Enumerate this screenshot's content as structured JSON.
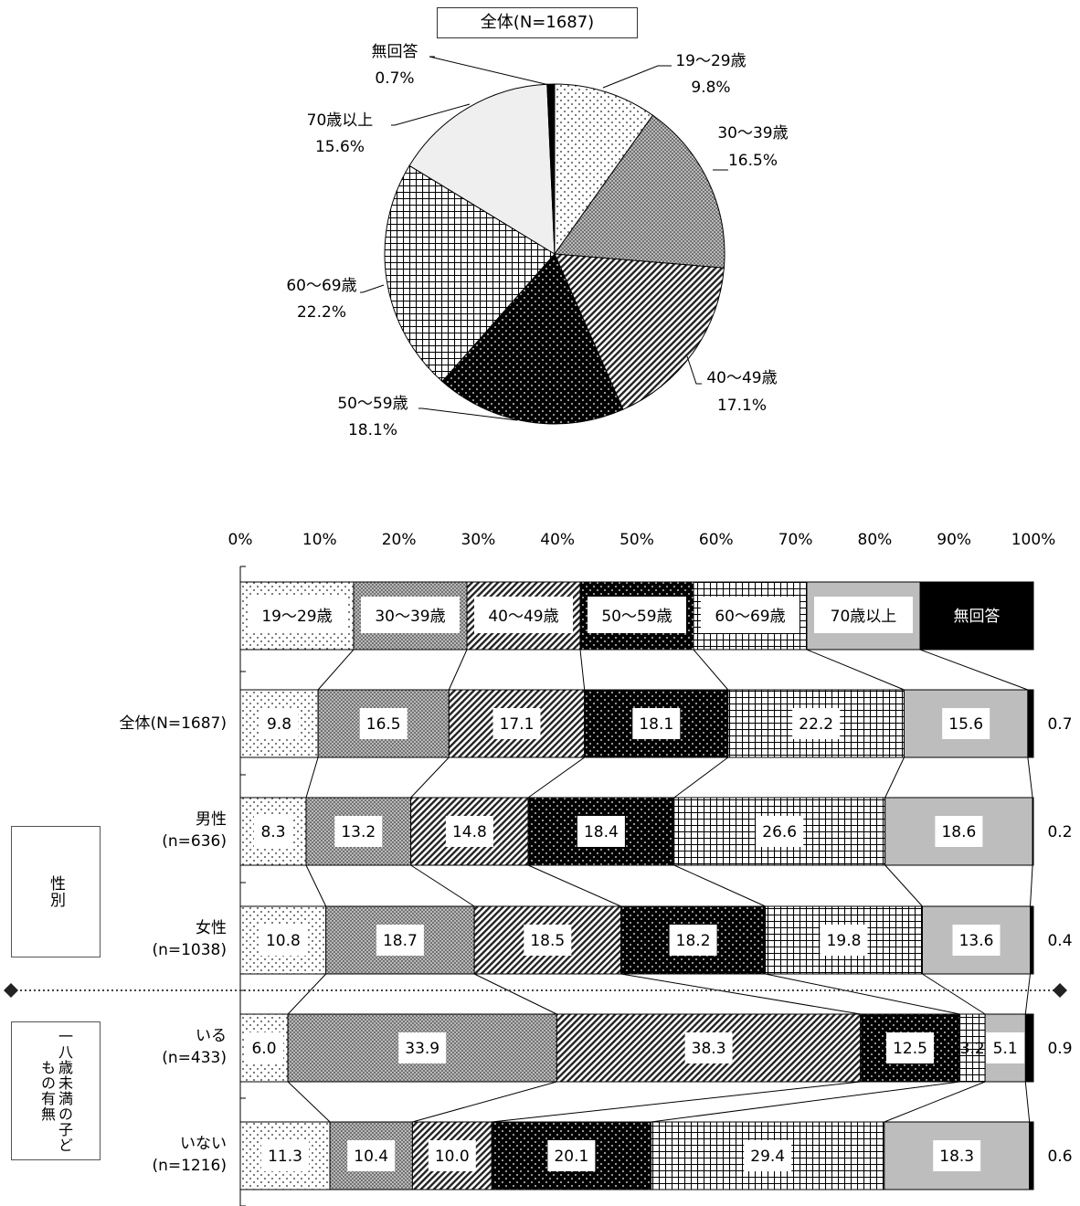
{
  "pie": {
    "title": "全体(N=1687)",
    "labels": [
      {
        "name": "19〜29歳",
        "value": "9.8%"
      },
      {
        "name": "30〜39歳",
        "value": "16.5%"
      },
      {
        "name": "40〜49歳",
        "value": "17.1%"
      },
      {
        "name": "50〜59歳",
        "value": "18.1%"
      },
      {
        "name": "60〜69歳",
        "value": "22.2%"
      },
      {
        "name": "70歳以上",
        "value": "15.6%"
      },
      {
        "name": "無回答",
        "value": "0.7%"
      }
    ]
  },
  "groups": {
    "sex": "性別",
    "children": "一八歳未満の子どもの有無"
  },
  "chart_data": [
    {
      "type": "pie",
      "title": "全体(N=1687)",
      "categories": [
        "19〜29歳",
        "30〜39歳",
        "40〜49歳",
        "50〜59歳",
        "60〜69歳",
        "70歳以上",
        "無回答"
      ],
      "values": [
        9.8,
        16.5,
        17.1,
        18.1,
        22.2,
        15.6,
        0.7
      ],
      "unit": "%"
    },
    {
      "type": "bar",
      "orientation": "horizontal-stacked-100",
      "x_ticks": [
        "0%",
        "10%",
        "20%",
        "30%",
        "40%",
        "50%",
        "60%",
        "70%",
        "80%",
        "90%",
        "100%"
      ],
      "xlim": [
        0,
        100
      ],
      "legend_position": "top",
      "categories_legend": [
        "19〜29歳",
        "30〜39歳",
        "40〜49歳",
        "50〜59歳",
        "60〜69歳",
        "70歳以上",
        "無回答"
      ],
      "rows": [
        {
          "label": "全体(N=1687)",
          "label_line2": "",
          "values": [
            9.8,
            16.5,
            17.1,
            18.1,
            22.2,
            15.6,
            0.7
          ],
          "value_labels": [
            "9.8",
            "16.5",
            "17.1",
            "18.1",
            "22.2",
            "15.6",
            "0.7"
          ]
        },
        {
          "label": "男性",
          "label_line2": "(n=636)",
          "values": [
            8.3,
            13.2,
            14.8,
            18.4,
            26.6,
            18.6,
            0.2
          ],
          "value_labels": [
            "8.3",
            "13.2",
            "14.8",
            "18.4",
            "26.6",
            "18.6",
            "0.2"
          ]
        },
        {
          "label": "女性",
          "label_line2": "(n=1038)",
          "values": [
            10.8,
            18.7,
            18.5,
            18.2,
            19.8,
            13.6,
            0.4
          ],
          "value_labels": [
            "10.8",
            "18.7",
            "18.5",
            "18.2",
            "19.8",
            "13.6",
            "0.4"
          ]
        },
        {
          "label": "いる",
          "label_line2": "(n=433)",
          "values": [
            6.0,
            33.9,
            38.3,
            12.5,
            3.2,
            5.1,
            0.9
          ],
          "value_labels": [
            "6.0",
            "33.9",
            "38.3",
            "12.5",
            "3.2",
            "5.1",
            "0.9"
          ]
        },
        {
          "label": "いない",
          "label_line2": "(n=1216)",
          "values": [
            11.3,
            10.4,
            10.0,
            20.1,
            29.4,
            18.3,
            0.6
          ],
          "value_labels": [
            "11.3",
            "10.4",
            "10.0",
            "20.1",
            "29.4",
            "18.3",
            "0.6"
          ]
        }
      ]
    }
  ]
}
